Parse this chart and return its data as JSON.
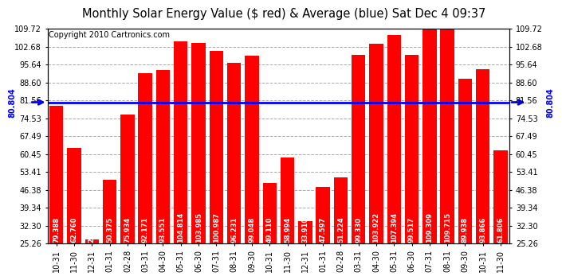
{
  "title": "Monthly Solar Energy Value ($ red) & Average (blue) Sat Dec 4 09:37",
  "copyright": "Copyright 2010 Cartronics.com",
  "categories": [
    "10-31",
    "11-30",
    "12-31",
    "01-31",
    "02-28",
    "03-31",
    "04-30",
    "05-31",
    "06-30",
    "07-31",
    "08-31",
    "09-30",
    "10-31",
    "11-30",
    "12-31",
    "01-31",
    "02-28",
    "03-31",
    "04-30",
    "05-31",
    "06-30",
    "07-31",
    "08-31",
    "09-30",
    "10-31",
    "11-30"
  ],
  "values": [
    79.388,
    62.76,
    26.918,
    50.375,
    75.934,
    92.171,
    93.551,
    104.814,
    103.985,
    100.987,
    96.231,
    99.048,
    49.11,
    58.994,
    33.91,
    47.597,
    51.224,
    99.33,
    103.922,
    107.394,
    99.517,
    109.309,
    109.715,
    89.938,
    93.866,
    61.806
  ],
  "average": 80.804,
  "bar_color": "#ff0000",
  "avg_color": "#0000ff",
  "background_color": "#ffffff",
  "plot_bg_color": "#ffffff",
  "grid_color": "#aaaaaa",
  "title_color": "#000000",
  "ymin": 25.26,
  "ymax": 109.72,
  "yticks": [
    25.26,
    32.3,
    39.34,
    46.38,
    53.41,
    60.45,
    67.49,
    74.53,
    81.56,
    88.6,
    95.64,
    102.68,
    109.72
  ],
  "title_fontsize": 10.5,
  "copyright_fontsize": 7,
  "bar_value_fontsize": 6,
  "tick_fontsize": 7,
  "avg_label": "80.804",
  "avg_arrow_color": "#0000ff"
}
